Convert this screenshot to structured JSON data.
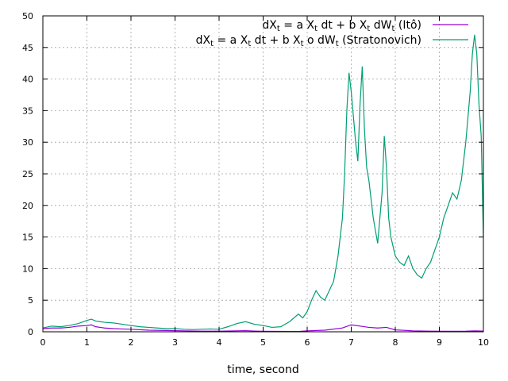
{
  "chart_data": {
    "type": "line",
    "xlabel": "time, second",
    "ylabel": "",
    "xlim": [
      0,
      10
    ],
    "ylim": [
      0,
      50
    ],
    "x_ticks": [
      0,
      1,
      2,
      3,
      4,
      5,
      6,
      7,
      8,
      9,
      10
    ],
    "y_ticks": [
      0,
      5,
      10,
      15,
      20,
      25,
      30,
      35,
      40,
      45,
      50
    ],
    "grid": true,
    "legend_position": "top-right",
    "series": [
      {
        "name": "dX_t = aX_t dt + bX_t dW_t (Itô)",
        "legend": {
          "l1": "dX",
          "s1": "t",
          "l2": " = a X",
          "s2": "t",
          "l3": " dt + b X",
          "s3": "t",
          "l4": " dW",
          "s4": "t",
          "l5": " (Itô)"
        },
        "color": "#9400d3",
        "x": [
          0.0,
          0.2,
          0.4,
          0.6,
          0.8,
          1.0,
          1.1,
          1.2,
          1.4,
          1.6,
          1.8,
          2.0,
          2.4,
          2.8,
          3.2,
          3.6,
          4.0,
          4.4,
          4.6,
          4.8,
          5.0,
          5.4,
          5.8,
          6.0,
          6.4,
          6.8,
          7.0,
          7.2,
          7.4,
          7.6,
          7.8,
          8.0,
          8.4,
          8.8,
          9.2,
          9.6,
          9.8,
          10.0
        ],
        "y": [
          0.5,
          0.6,
          0.6,
          0.7,
          0.9,
          1.0,
          1.1,
          0.8,
          0.6,
          0.5,
          0.45,
          0.4,
          0.25,
          0.2,
          0.15,
          0.1,
          0.1,
          0.15,
          0.18,
          0.12,
          0.08,
          0.06,
          0.05,
          0.15,
          0.25,
          0.6,
          1.1,
          0.9,
          0.7,
          0.6,
          0.7,
          0.3,
          0.15,
          0.1,
          0.08,
          0.1,
          0.15,
          0.12
        ]
      },
      {
        "name": "dX_t = aX_t dt + bX_t o dW_t (Stratonovich)",
        "legend": {
          "l1": "dX",
          "s1": "t",
          "l2": " = a X",
          "s2": "t",
          "l3": " dt + b X",
          "s3": "t",
          "l4": " o dW",
          "s4": "t",
          "l5": " (Stratonovich)"
        },
        "color": "#009e73",
        "x": [
          0.0,
          0.2,
          0.4,
          0.6,
          0.8,
          1.0,
          1.1,
          1.2,
          1.4,
          1.6,
          1.8,
          2.0,
          2.2,
          2.4,
          2.6,
          2.8,
          3.0,
          3.2,
          3.4,
          3.6,
          3.8,
          4.0,
          4.2,
          4.4,
          4.6,
          4.8,
          5.0,
          5.2,
          5.4,
          5.6,
          5.8,
          5.9,
          6.0,
          6.1,
          6.2,
          6.3,
          6.4,
          6.5,
          6.6,
          6.7,
          6.8,
          6.85,
          6.9,
          6.95,
          7.0,
          7.05,
          7.1,
          7.15,
          7.2,
          7.25,
          7.3,
          7.35,
          7.4,
          7.5,
          7.6,
          7.7,
          7.75,
          7.8,
          7.85,
          7.9,
          8.0,
          8.1,
          8.2,
          8.3,
          8.4,
          8.5,
          8.6,
          8.7,
          8.8,
          8.9,
          9.0,
          9.1,
          9.2,
          9.3,
          9.4,
          9.5,
          9.6,
          9.65,
          9.7,
          9.75,
          9.8,
          9.85,
          9.9,
          9.95,
          10.0
        ],
        "y": [
          0.6,
          0.9,
          0.8,
          1.0,
          1.3,
          1.8,
          2.0,
          1.7,
          1.5,
          1.4,
          1.2,
          1.0,
          0.8,
          0.7,
          0.6,
          0.5,
          0.5,
          0.4,
          0.35,
          0.4,
          0.45,
          0.4,
          0.8,
          1.3,
          1.6,
          1.2,
          1.0,
          0.7,
          0.8,
          1.6,
          2.8,
          2.2,
          3.2,
          5.0,
          6.5,
          5.5,
          5.0,
          6.5,
          8.0,
          12.0,
          18.0,
          25.0,
          35.0,
          41.0,
          38.0,
          34.0,
          30.0,
          27.0,
          36.0,
          42.0,
          32.0,
          26.0,
          24.0,
          18.0,
          14.0,
          22.0,
          31.0,
          26.0,
          18.0,
          15.0,
          12.0,
          11.0,
          10.5,
          12.0,
          10.0,
          9.0,
          8.5,
          10.0,
          11.0,
          13.0,
          15.0,
          18.0,
          20.0,
          22.0,
          21.0,
          24.0,
          30.0,
          34.0,
          38.0,
          44.0,
          47.0,
          44.0,
          36.0,
          31.0,
          15.0
        ]
      }
    ]
  }
}
